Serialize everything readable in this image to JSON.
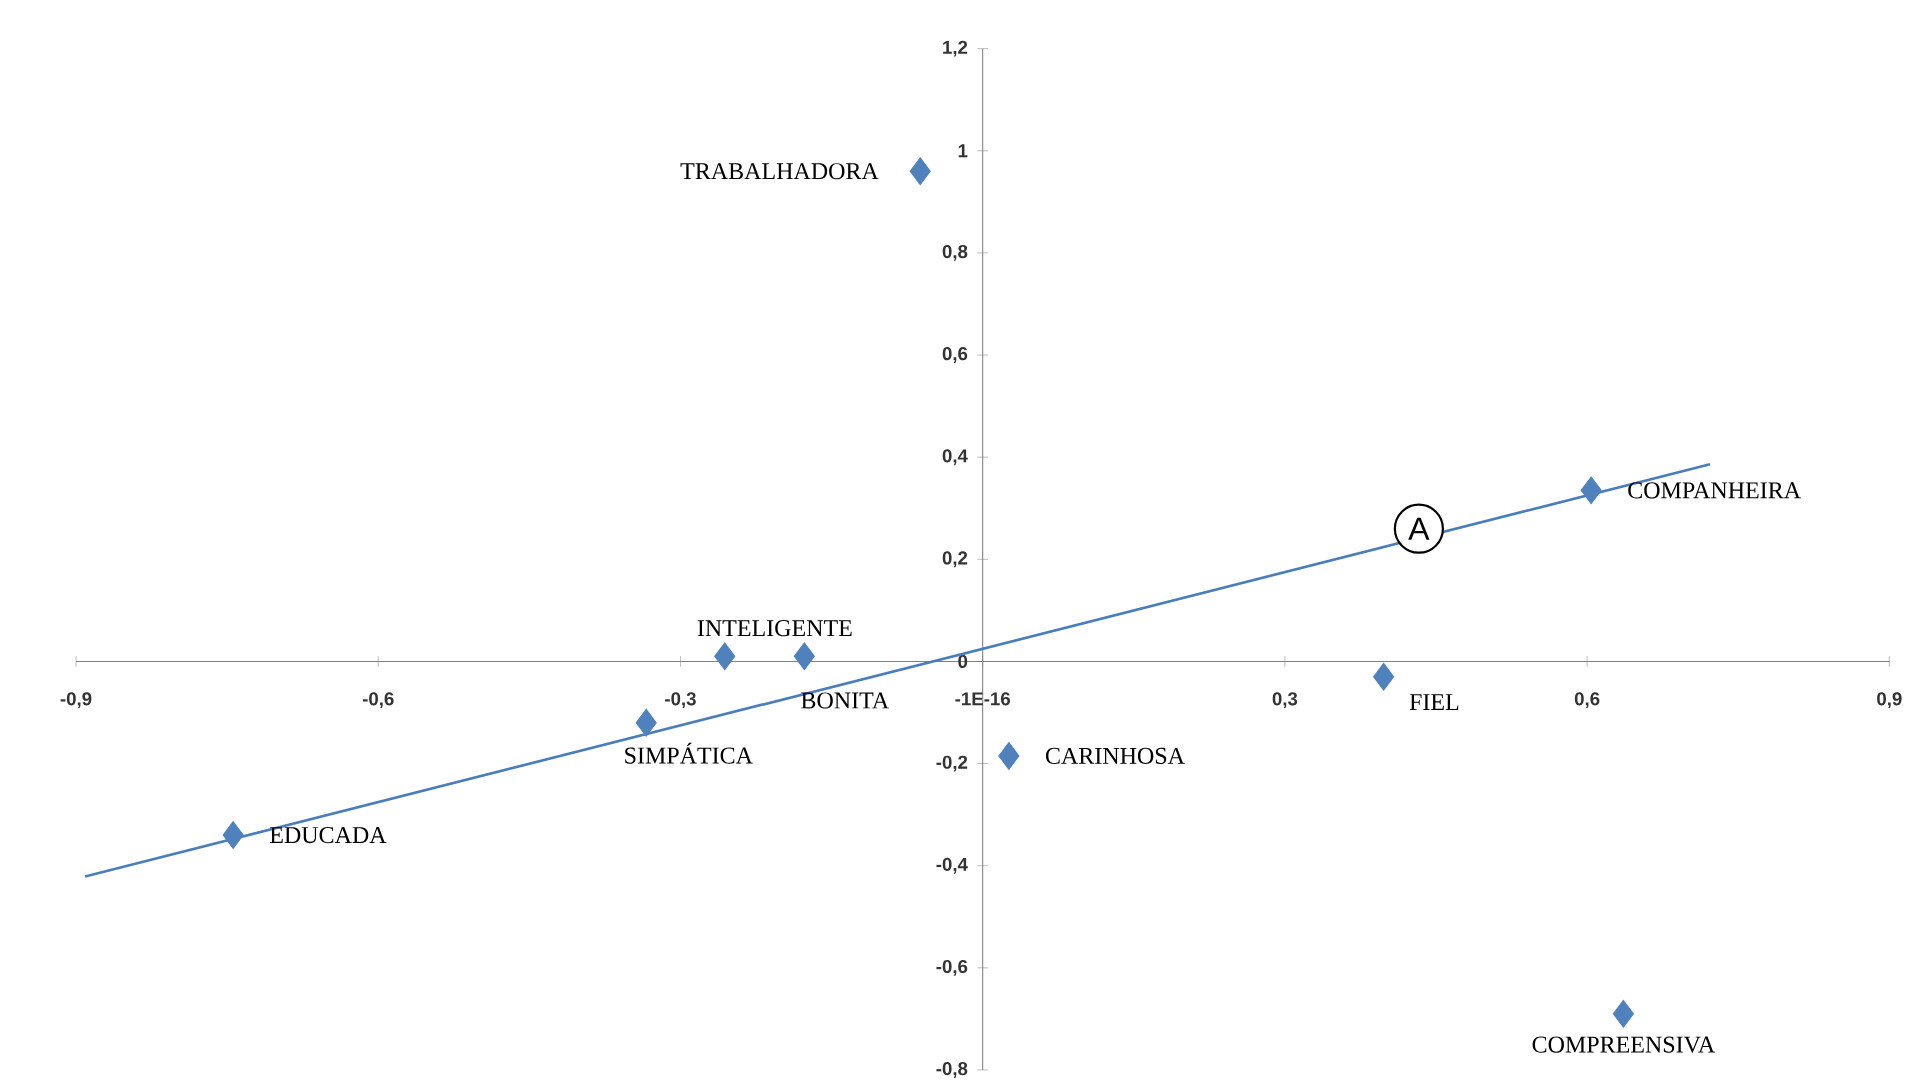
{
  "chart_data": {
    "type": "scatter",
    "marker": "diamond",
    "series": [
      {
        "color": "#4f81bd",
        "x": [
          -0.062,
          -0.256,
          -0.177,
          -0.334,
          0.026,
          0.398,
          0.604,
          0.636,
          -0.744
        ],
        "values": [
          0.96,
          0.01,
          0.01,
          -0.12,
          -0.185,
          -0.03,
          0.335,
          -0.69,
          -0.34
        ]
      },
      {
        "type": "line",
        "marker": "none",
        "color": "#4a7ebb",
        "x": [
          -0.891,
          0.722
        ],
        "values": [
          -0.421,
          0.386
        ]
      }
    ],
    "annotations": [
      {
        "text": "TRABALHADORA",
        "x": -0.062,
        "y": 0.96
      },
      {
        "text": "INTELIGENTE",
        "x": -0.256,
        "y": 0.01
      },
      {
        "text": "BONITA",
        "x": -0.177,
        "y": 0.01
      },
      {
        "text": "SIMPÁTICA",
        "x": -0.334,
        "y": -0.12
      },
      {
        "text": "CARINHOSA",
        "x": 0.026,
        "y": -0.185
      },
      {
        "text": "FIEL",
        "x": 0.398,
        "y": -0.03
      },
      {
        "text": "COMPANHEIRA",
        "x": 0.604,
        "y": 0.335
      },
      {
        "text": "COMPREENSIVA",
        "x": 0.636,
        "y": -0.69
      },
      {
        "text": "EDUCADA",
        "x": -0.744,
        "y": -0.34
      },
      {
        "text": "A",
        "x": 0.433,
        "y": 0.26
      }
    ],
    "xlim": [
      -0.9,
      0.9
    ],
    "xticks": [
      {
        "value": -0.9,
        "label": "-0,9"
      },
      {
        "value": -0.6,
        "label": "-0,6"
      },
      {
        "value": -0.3,
        "label": "-0,3"
      },
      {
        "value": 0,
        "label": "-1E-16"
      },
      {
        "value": 0.3,
        "label": "0,3"
      },
      {
        "value": 0.6,
        "label": "0,6"
      },
      {
        "value": 0.9,
        "label": "0,9"
      }
    ],
    "ylim": [
      -0.8,
      1.2
    ],
    "yticks": [
      {
        "value": -0.8,
        "label": "-0,8"
      },
      {
        "value": -0.6,
        "label": "-0,6"
      },
      {
        "value": -0.4,
        "label": "-0,4"
      },
      {
        "value": -0.2,
        "label": "-0,2"
      },
      0,
      {
        "value": 0.2,
        "label": "0,2"
      },
      {
        "value": 0.4,
        "label": "0,4"
      },
      {
        "value": 0.6,
        "label": "0,6"
      },
      {
        "value": 0.8,
        "label": "0,8"
      },
      1,
      {
        "value": 1.2,
        "label": "1,2"
      }
    ]
  }
}
